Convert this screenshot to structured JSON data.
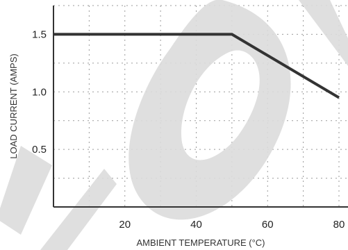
{
  "chart_data": {
    "type": "line",
    "xlabel": "AMBIENT TEMPERATURE (°C)",
    "ylabel": "LOAD CURRENT (AMPS)",
    "xlim": [
      0,
      80
    ],
    "ylim": [
      0,
      1.75
    ],
    "x_ticks": [
      20,
      40,
      60,
      80
    ],
    "x_tick_labels": [
      "20",
      "40",
      "60",
      "80"
    ],
    "y_ticks": [
      0.5,
      1.0,
      1.5
    ],
    "y_tick_labels": [
      "0.5",
      "1.0",
      "1.5"
    ],
    "grid": true,
    "grid_style": "dotted",
    "series": [
      {
        "x": [
          0,
          50,
          80
        ],
        "y": [
          1.5,
          1.5,
          0.95
        ]
      }
    ],
    "colors": {
      "line": "#333333",
      "axes": "#333333",
      "grid": "#9a9a9a",
      "watermark": "#dcdcdc"
    }
  }
}
